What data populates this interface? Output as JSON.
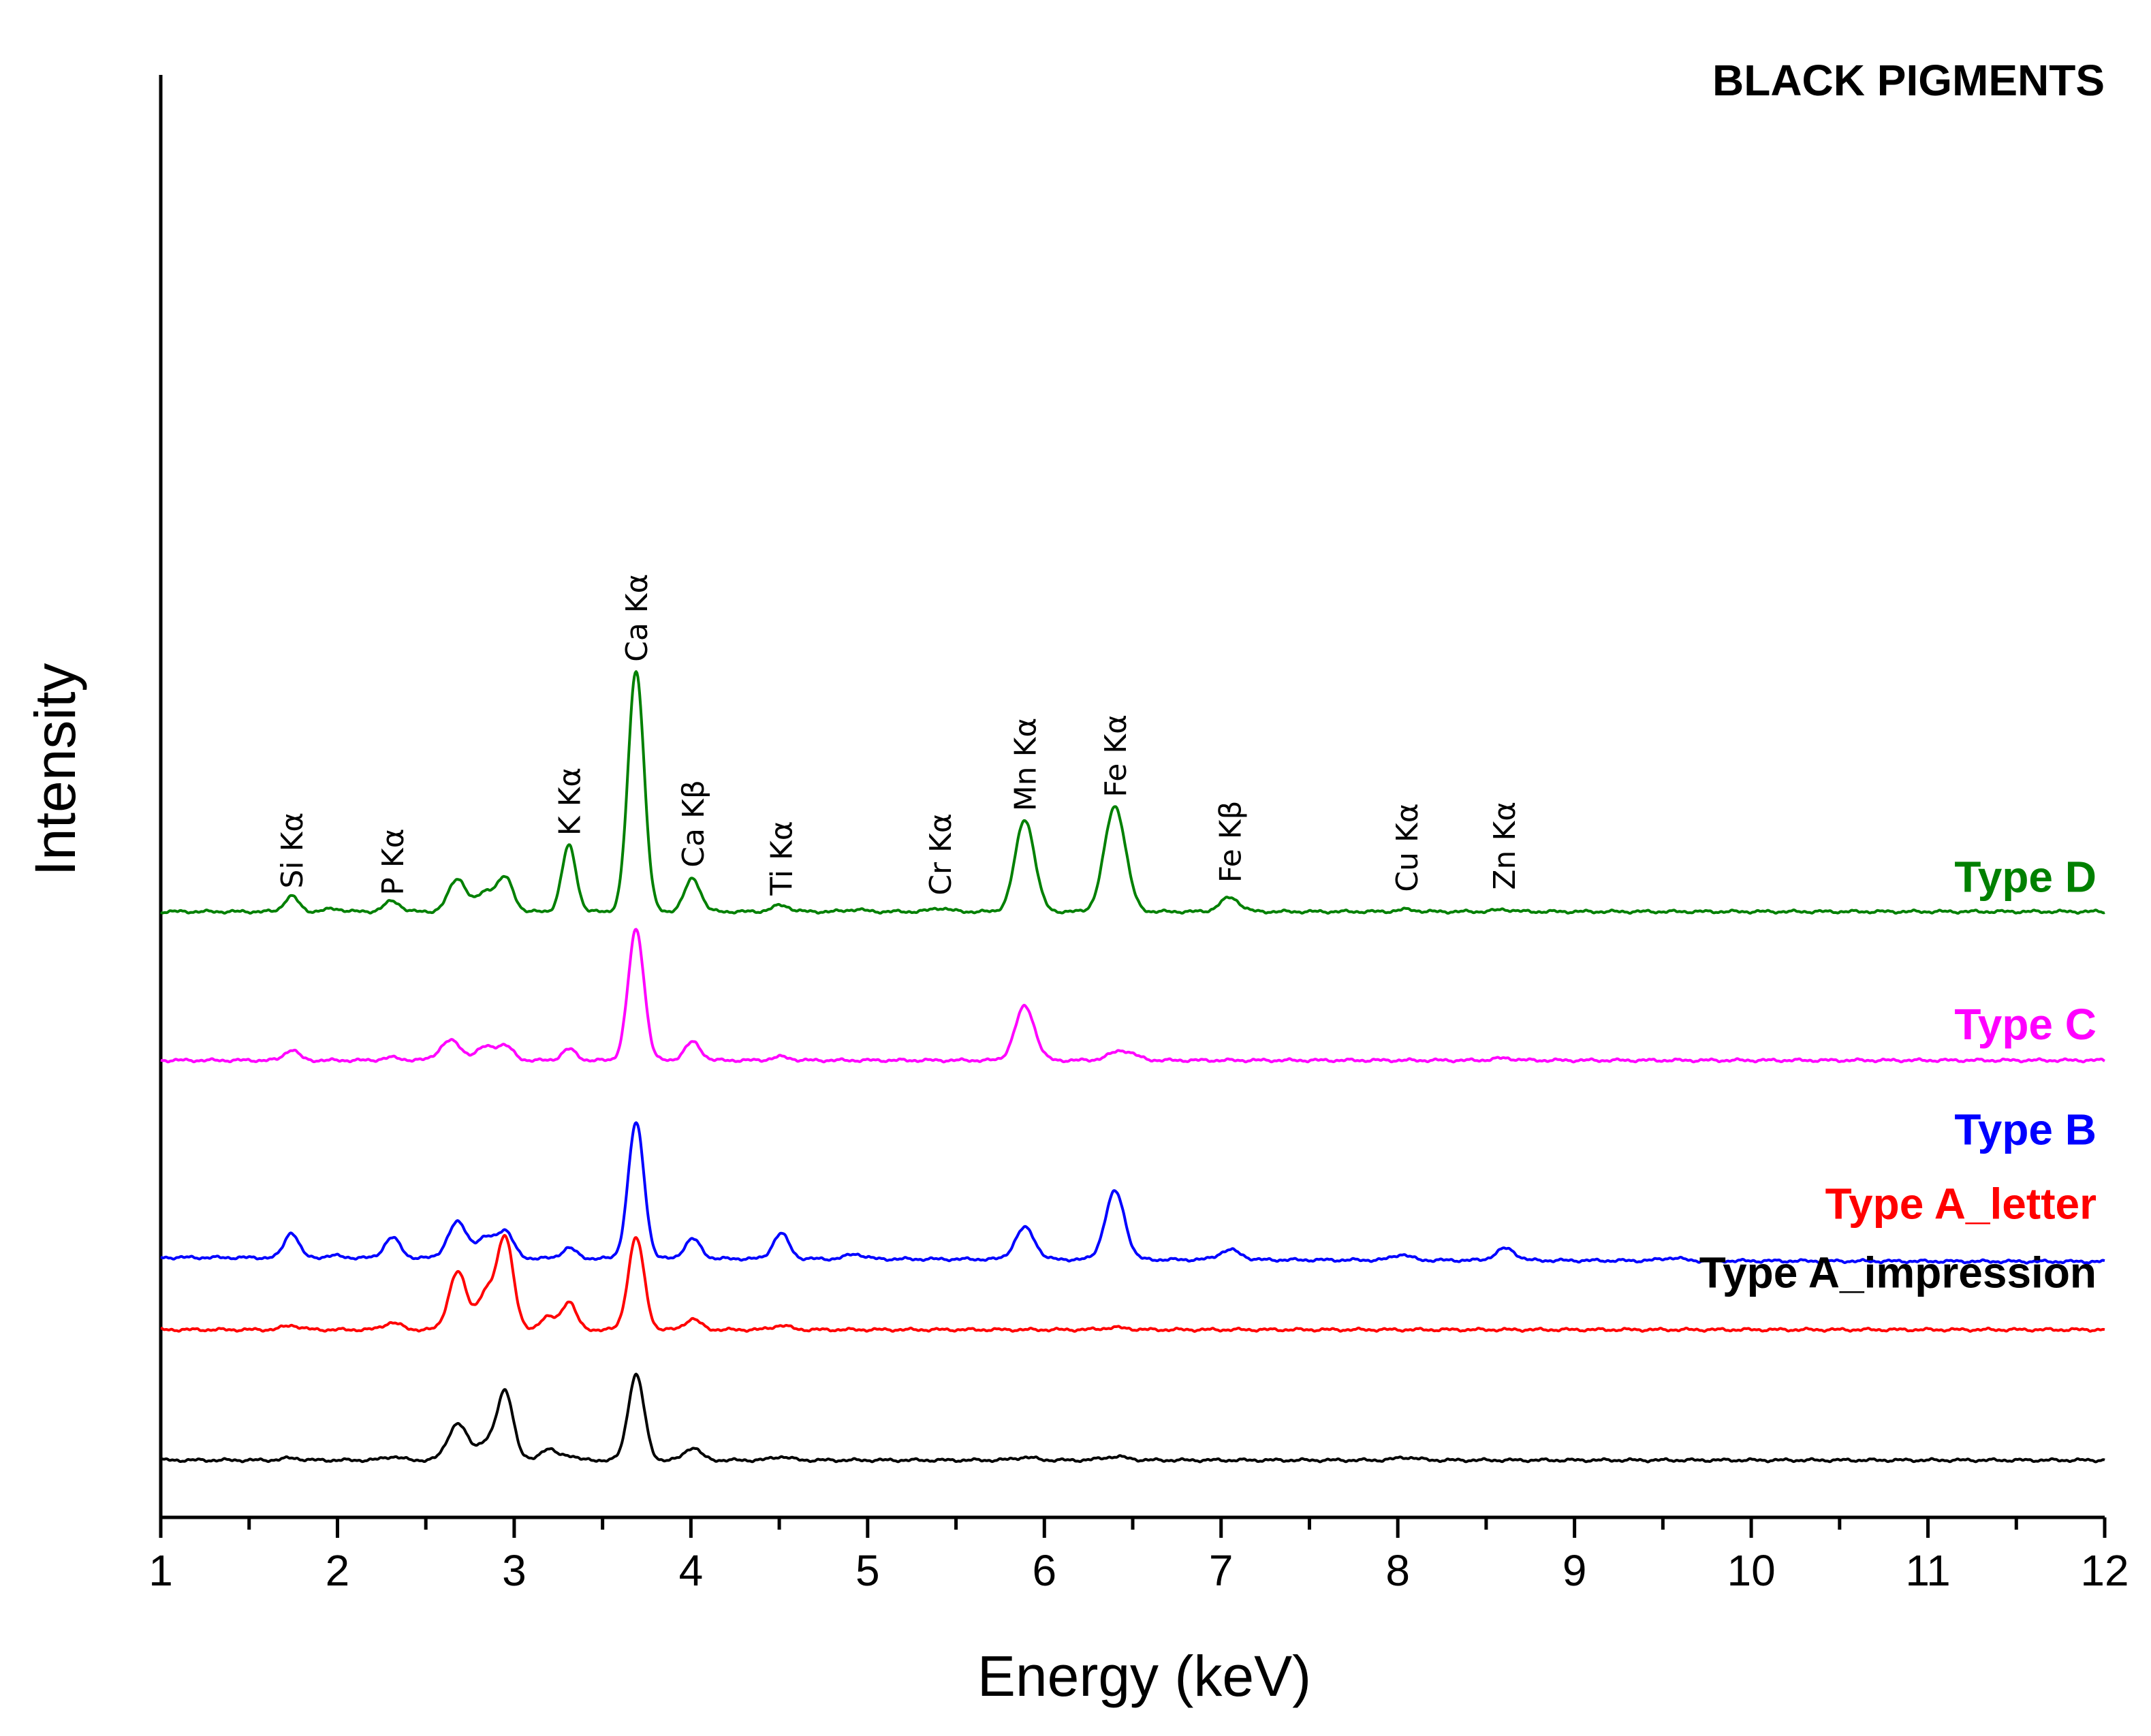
{
  "chart_data": {
    "type": "line",
    "title": "BLACK PIGMENTS",
    "xlabel": "Energy (keV)",
    "ylabel": "Intensity",
    "xlim": [
      1,
      12
    ],
    "ylim": [
      0,
      100
    ],
    "xticks": [
      "1",
      "2",
      "3",
      "4",
      "5",
      "6",
      "7",
      "8",
      "9",
      "10",
      "11",
      "12"
    ],
    "series": [
      {
        "name": "Type A_impression",
        "color": "#000000",
        "baseline": 0,
        "tail": 0,
        "peaks": [
          [
            1.74,
            0.3,
            0.05
          ],
          [
            2.31,
            0.5,
            0.05
          ],
          [
            2.68,
            5.2,
            0.055
          ],
          [
            2.84,
            2.5,
            0.05
          ],
          [
            2.95,
            9.8,
            0.045
          ],
          [
            3.19,
            1.6,
            0.045
          ],
          [
            3.31,
            0.7,
            0.04
          ],
          [
            3.69,
            12.2,
            0.045
          ],
          [
            4.01,
            1.8,
            0.045
          ],
          [
            4.51,
            0.5,
            0.05
          ],
          [
            5.89,
            0.4,
            0.06
          ],
          [
            6.4,
            0.5,
            0.07
          ],
          [
            8.05,
            0.4,
            0.06
          ]
        ]
      },
      {
        "name": "Type A_letter",
        "color": "#ff0000",
        "baseline": 18.6,
        "tail": 0,
        "peaks": [
          [
            1.74,
            0.6,
            0.05
          ],
          [
            2.31,
            1.0,
            0.05
          ],
          [
            2.68,
            8.2,
            0.05
          ],
          [
            2.84,
            5.2,
            0.05
          ],
          [
            2.95,
            13.1,
            0.045
          ],
          [
            3.19,
            1.8,
            0.045
          ],
          [
            3.31,
            4.0,
            0.04
          ],
          [
            3.69,
            13.1,
            0.045
          ],
          [
            4.01,
            1.5,
            0.045
          ],
          [
            4.51,
            0.6,
            0.05
          ],
          [
            6.4,
            0.3,
            0.07
          ]
        ]
      },
      {
        "name": "Type B",
        "color": "#0000ff",
        "baseline": 28.9,
        "tail": -0.6,
        "peaks": [
          [
            1.74,
            3.6,
            0.04
          ],
          [
            1.98,
            0.3,
            0.05
          ],
          [
            2.31,
            2.9,
            0.045
          ],
          [
            2.68,
            5.1,
            0.055
          ],
          [
            2.84,
            2.8,
            0.05
          ],
          [
            2.95,
            3.8,
            0.045
          ],
          [
            3.31,
            1.5,
            0.04
          ],
          [
            3.69,
            19.3,
            0.045
          ],
          [
            4.01,
            2.8,
            0.045
          ],
          [
            4.51,
            3.6,
            0.045
          ],
          [
            4.93,
            0.7,
            0.05
          ],
          [
            5.89,
            4.5,
            0.055
          ],
          [
            6.4,
            9.7,
            0.055
          ],
          [
            7.05,
            1.4,
            0.06
          ],
          [
            8.02,
            0.8,
            0.05
          ],
          [
            8.61,
            1.7,
            0.055
          ],
          [
            9.55,
            0.4,
            0.06
          ]
        ]
      },
      {
        "name": "Type C",
        "color": "#ff00ff",
        "baseline": 57.0,
        "tail": 0,
        "peaks": [
          [
            1.74,
            1.5,
            0.04
          ],
          [
            2.31,
            0.4,
            0.05
          ],
          [
            2.64,
            2.8,
            0.06
          ],
          [
            2.84,
            1.9,
            0.05
          ],
          [
            2.95,
            2.0,
            0.045
          ],
          [
            3.31,
            1.6,
            0.04
          ],
          [
            3.69,
            18.6,
            0.045
          ],
          [
            4.01,
            2.6,
            0.045
          ],
          [
            4.51,
            0.5,
            0.05
          ],
          [
            5.89,
            7.7,
            0.055
          ],
          [
            6.44,
            1.4,
            0.07
          ],
          [
            8.6,
            0.3,
            0.06
          ]
        ]
      },
      {
        "name": "Type D",
        "color": "#008000",
        "baseline": 78.2,
        "tail": 0,
        "peaks": [
          [
            1.74,
            2.2,
            0.04
          ],
          [
            1.98,
            0.4,
            0.05
          ],
          [
            2.31,
            1.5,
            0.045
          ],
          [
            2.68,
            4.7,
            0.05
          ],
          [
            2.84,
            2.8,
            0.05
          ],
          [
            2.95,
            4.7,
            0.045
          ],
          [
            3.31,
            9.4,
            0.04
          ],
          [
            3.69,
            34.4,
            0.045
          ],
          [
            4.01,
            4.7,
            0.045
          ],
          [
            4.51,
            0.9,
            0.05
          ],
          [
            4.93,
            0.3,
            0.05
          ],
          [
            5.41,
            0.5,
            0.05
          ],
          [
            5.89,
            13.1,
            0.055
          ],
          [
            6.4,
            15.0,
            0.06
          ],
          [
            7.05,
            2.0,
            0.055
          ],
          [
            8.05,
            0.3,
            0.05
          ],
          [
            8.6,
            0.3,
            0.05
          ]
        ]
      }
    ],
    "series_labels": [
      {
        "text": "Type D",
        "color": "#008000",
        "x": 12,
        "y": 81.0
      },
      {
        "text": "Type C",
        "color": "#ff00ff",
        "x": 12,
        "y": 60.0
      },
      {
        "text": "Type B",
        "color": "#0000ff",
        "x": 12,
        "y": 45.0
      },
      {
        "text": "Type A_letter",
        "color": "#ff0000",
        "x": 12,
        "y": 34.4
      },
      {
        "text": "Type A_impression",
        "color": "#000000",
        "x": 12,
        "y": 24.6
      }
    ],
    "peak_labels": [
      {
        "text": "Si Kα",
        "x": 1.74,
        "y": 81.5
      },
      {
        "text": "P Kα",
        "x": 2.31,
        "y": 80.5
      },
      {
        "text": "K Kα",
        "x": 3.31,
        "y": 89.0
      },
      {
        "text": "Ca Kα",
        "x": 3.69,
        "y": 113.8
      },
      {
        "text": "Ca Kβ",
        "x": 4.01,
        "y": 84.5
      },
      {
        "text": "Ti Kα",
        "x": 4.51,
        "y": 80.5
      },
      {
        "text": "Cr Kα",
        "x": 5.41,
        "y": 80.5
      },
      {
        "text": "Mn Kα",
        "x": 5.89,
        "y": 92.5
      },
      {
        "text": "Fe Kα",
        "x": 6.4,
        "y": 94.5
      },
      {
        "text": "Fe Kβ",
        "x": 7.05,
        "y": 82.3
      },
      {
        "text": "Cu Kα",
        "x": 8.05,
        "y": 81.0
      },
      {
        "text": "Zn Kα",
        "x": 8.6,
        "y": 81.3
      }
    ]
  }
}
